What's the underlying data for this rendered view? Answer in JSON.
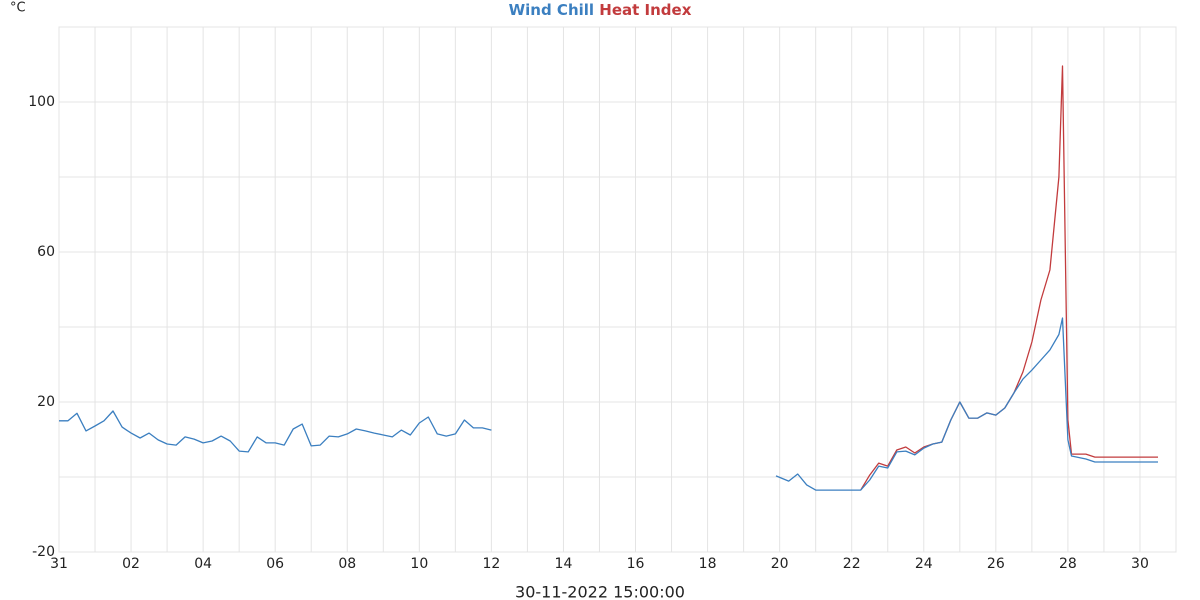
{
  "chart_data": {
    "type": "line",
    "ylabel": "°C",
    "xlabel": "30-11-2022 15:00:00",
    "x": [
      0,
      0.25,
      0.5,
      0.75,
      1,
      1.25,
      1.5,
      1.75,
      2,
      2.25,
      2.5,
      2.75,
      3,
      3.25,
      3.5,
      3.75,
      4,
      4.25,
      4.5,
      4.75,
      5,
      5.25,
      5.5,
      5.75,
      6,
      6.25,
      6.5,
      6.75,
      7,
      7.25,
      7.5,
      7.75,
      8,
      8.25,
      8.5,
      8.75,
      9,
      9.25,
      9.5,
      9.75,
      10,
      10.25,
      10.5,
      10.75,
      11,
      11.25,
      11.5,
      11.75,
      12,
      16,
      19.9,
      20.25,
      20.5,
      20.75,
      21,
      22.25,
      22.5,
      22.75,
      23,
      23.25,
      23.5,
      23.75,
      24,
      24.25,
      24.5,
      24.75,
      25,
      25.25,
      25.5,
      25.75,
      26,
      26.25,
      26.5,
      26.75,
      27,
      27.25,
      27.5,
      27.75,
      27.85,
      28,
      28.1,
      28.25,
      28.5,
      28.75,
      29,
      29.5,
      30,
      30.5
    ],
    "series": [
      {
        "name": "Wind Chill",
        "color": "#3b7fc0",
        "values": [
          15,
          15,
          17,
          12.3,
          13.6,
          15,
          17.6,
          13.3,
          11.7,
          10.4,
          11.7,
          9.9,
          8.8,
          8.5,
          10.7,
          10.1,
          9.1,
          9.6,
          10.9,
          9.6,
          6.9,
          6.7,
          10.7,
          9.1,
          9.1,
          8.5,
          12.8,
          14.1,
          8.3,
          8.5,
          10.9,
          10.7,
          11.5,
          12.8,
          12.3,
          11.7,
          11.2,
          10.7,
          12.5,
          11.2,
          14.4,
          16,
          11.5,
          10.9,
          11.5,
          15.2,
          13.1,
          13.1,
          12.5,
          null,
          0.3,
          -1.1,
          0.8,
          -2.1,
          -3.5,
          -3.5,
          -0.8,
          2.9,
          2.4,
          6.7,
          6.9,
          5.9,
          7.7,
          8.8,
          9.3,
          15.2,
          20,
          15.7,
          15.7,
          17.1,
          16.5,
          18.4,
          22.4,
          26.1,
          28.5,
          31.2,
          33.9,
          38,
          42.4,
          9.9,
          5.6,
          5.3,
          4.8,
          4.0,
          4.0,
          4.0,
          4.0,
          4.0
        ]
      },
      {
        "name": "Heat Index",
        "color": "#c23b3d",
        "values": [
          null,
          null,
          null,
          null,
          null,
          null,
          null,
          null,
          null,
          null,
          null,
          null,
          null,
          null,
          null,
          null,
          null,
          null,
          null,
          null,
          null,
          null,
          null,
          null,
          null,
          null,
          null,
          null,
          null,
          null,
          null,
          null,
          null,
          null,
          null,
          null,
          null,
          null,
          null,
          null,
          null,
          null,
          null,
          null,
          null,
          null,
          null,
          null,
          null,
          null,
          null,
          null,
          null,
          null,
          null,
          -3.5,
          0.5,
          3.7,
          2.9,
          7.2,
          8,
          6.4,
          8,
          8.8,
          9.3,
          15.2,
          20,
          15.7,
          15.7,
          17.1,
          16.5,
          18.4,
          22.4,
          28,
          36,
          47.2,
          55.2,
          80,
          109.6,
          15.2,
          6.1,
          6.1,
          6.1,
          5.3,
          5.3,
          5.3,
          5.3,
          5.3
        ]
      }
    ],
    "xlim": [
      0,
      31
    ],
    "xticks": [
      {
        "value": 0,
        "label": "31"
      },
      {
        "value": 2,
        "label": "02"
      },
      {
        "value": 4,
        "label": "04"
      },
      {
        "value": 6,
        "label": "06"
      },
      {
        "value": 8,
        "label": "08"
      },
      {
        "value": 10,
        "label": "10"
      },
      {
        "value": 12,
        "label": "12"
      },
      {
        "value": 14,
        "label": "14"
      },
      {
        "value": 16,
        "label": "16"
      },
      {
        "value": 18,
        "label": "18"
      },
      {
        "value": 20,
        "label": "20"
      },
      {
        "value": 22,
        "label": "22"
      },
      {
        "value": 24,
        "label": "24"
      },
      {
        "value": 26,
        "label": "26"
      },
      {
        "value": 28,
        "label": "28"
      },
      {
        "value": 30,
        "label": "30"
      }
    ],
    "ylim": [
      -20,
      120
    ],
    "yticks": [
      -20,
      20,
      60,
      100
    ],
    "grid": true
  }
}
